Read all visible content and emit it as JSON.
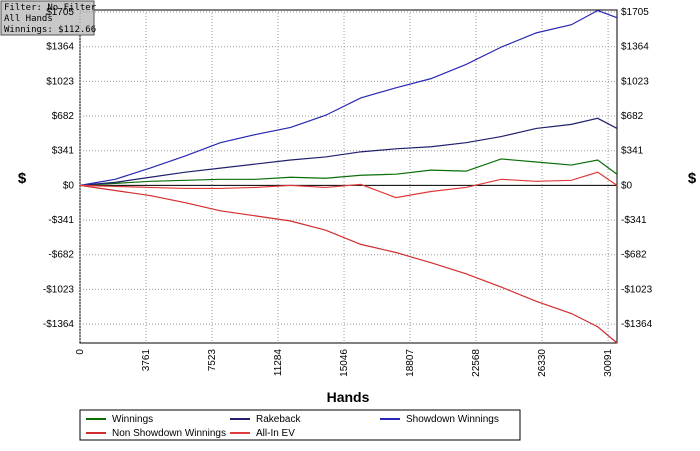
{
  "chart_data": {
    "type": "line",
    "info": [
      "Filter: No Filter",
      "All Hands",
      "Winnings: $112.66"
    ],
    "x_label": "Hands",
    "y_label": "$",
    "y2_label": "$",
    "x": [
      0,
      2000,
      4000,
      6000,
      8000,
      10000,
      12000,
      14000,
      16000,
      18000,
      20000,
      22000,
      24000,
      26000,
      28000,
      29500,
      30600
    ],
    "series": [
      {
        "name": "Winnings",
        "color": "#0a6e0a",
        "values": [
          0,
          20,
          40,
          50,
          60,
          60,
          80,
          70,
          100,
          110,
          150,
          140,
          260,
          230,
          200,
          250,
          110
        ]
      },
      {
        "name": "Rakeback",
        "color": "#20206e",
        "values": [
          0,
          30,
          80,
          130,
          170,
          210,
          250,
          280,
          330,
          360,
          380,
          420,
          480,
          560,
          600,
          660,
          560
        ]
      },
      {
        "name": "Showdown Winnings",
        "color": "#2828b4",
        "values": [
          0,
          60,
          170,
          290,
          420,
          500,
          570,
          690,
          860,
          960,
          1050,
          1190,
          1360,
          1500,
          1580,
          1720,
          1650
        ]
      },
      {
        "name": "Non Showdown Winnings",
        "color": "#d22d2d",
        "values": [
          0,
          -50,
          -100,
          -170,
          -250,
          -300,
          -350,
          -440,
          -580,
          -660,
          -760,
          -870,
          -1000,
          -1140,
          -1260,
          -1390,
          -1550
        ]
      },
      {
        "name": "All-In EV",
        "color": "#e03a3a",
        "values": [
          0,
          -10,
          -20,
          -30,
          -30,
          -20,
          0,
          -20,
          10,
          -120,
          -60,
          -20,
          60,
          40,
          50,
          130,
          0
        ]
      }
    ],
    "xlim": [
      0,
      30600
    ],
    "xticks": [
      0,
      3761,
      7523,
      11284,
      15046,
      18807,
      22568,
      26330,
      30091
    ],
    "ylim": [
      -1550,
      1725
    ],
    "yticks": [
      {
        "value": -1364,
        "label": "-$1364"
      },
      {
        "value": -1023,
        "label": "-$1023"
      },
      {
        "value": -682,
        "label": "-$682"
      },
      {
        "value": -341,
        "label": "-$341"
      },
      {
        "value": 0,
        "label": "$0"
      },
      {
        "value": 341,
        "label": "$341"
      },
      {
        "value": 682,
        "label": "$682"
      },
      {
        "value": 1023,
        "label": "$1023"
      },
      {
        "value": 1364,
        "label": "$1364"
      },
      {
        "value": 1705,
        "label": "$1705"
      }
    ],
    "grid": true
  }
}
